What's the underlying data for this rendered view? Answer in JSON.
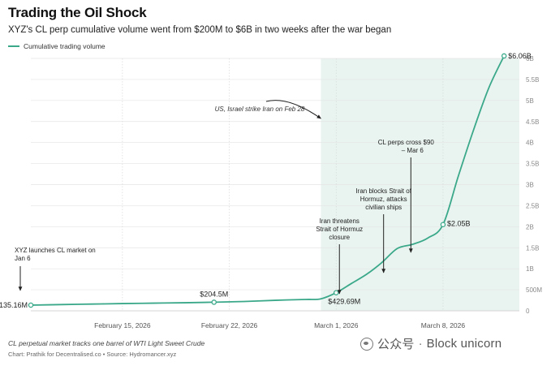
{
  "title": "Trading the Oil Shock",
  "subtitle": "XYZ's CL perp cumulative volume went from $200M to $6B in two weeks after the war began",
  "legend": {
    "label": "Cumulative trading volume"
  },
  "colors": {
    "line": "#3aa889",
    "shade": "#e9f4f0",
    "grid": "#e4e4e4",
    "text": "#333333"
  },
  "footnote": "CL perpetual market tracks one barrel of WTI Light Sweet Crude",
  "credit": "Chart: Prathik for Decentralised.co • Source: Hydromancer.xyz",
  "watermark": {
    "wechat": "公众号",
    "separator": "·",
    "name": "Block unicorn"
  },
  "chart_data": {
    "type": "line",
    "x_unit": "date",
    "y_unit": "USD",
    "x": [
      "2026-02-09",
      "2026-02-11",
      "2026-02-13",
      "2026-02-15",
      "2026-02-17",
      "2026-02-19",
      "2026-02-21",
      "2026-02-23",
      "2026-02-25",
      "2026-02-27",
      "2026-02-28",
      "2026-03-01",
      "2026-03-02",
      "2026-03-03",
      "2026-03-04",
      "2026-03-05",
      "2026-03-06",
      "2026-03-07",
      "2026-03-08",
      "2026-03-09",
      "2026-03-10",
      "2026-03-11",
      "2026-03-12"
    ],
    "series": [
      {
        "name": "Cumulative trading volume",
        "values": [
          135.16,
          148,
          160,
          172,
          182,
          192,
          204.5,
          222,
          250,
          270,
          285,
          429.69,
          650,
          870,
          1150,
          1480,
          1580,
          1730,
          2050,
          3200,
          4300,
          5300,
          6060
        ]
      }
    ],
    "xlim": [
      "2026-02-09",
      "2026-03-13"
    ],
    "ylim": [
      0,
      6000
    ],
    "y_ticks": [
      0,
      500,
      1000,
      1500,
      2000,
      2500,
      3000,
      3500,
      4000,
      4500,
      5000,
      5500,
      6000
    ],
    "y_tick_labels": [
      "0",
      "500M",
      "1B",
      "1.5B",
      "2B",
      "2.5B",
      "3B",
      "3.5B",
      "4B",
      "4.5B",
      "5B",
      "5.5B",
      "6B"
    ],
    "x_ticks": [
      "2026-02-15",
      "2026-02-22",
      "2026-03-01",
      "2026-03-08"
    ],
    "x_tick_labels": [
      "February 15, 2026",
      "February 22, 2026",
      "March 1, 2026",
      "March 8, 2026"
    ],
    "shaded_region": {
      "from": "2026-02-28",
      "to": "2026-03-13"
    },
    "grid": true,
    "legend_position": "top-left",
    "data_labels": [
      {
        "x": "2026-02-09",
        "y": 135.16,
        "text": "$135.16M"
      },
      {
        "x": "2026-02-21",
        "y": 204.5,
        "text": "$204.5M"
      },
      {
        "x": "2026-03-01",
        "y": 429.69,
        "text": "$429.69M"
      },
      {
        "x": "2026-03-08",
        "y": 2050,
        "text": "$2.05B"
      },
      {
        "x": "2026-03-12",
        "y": 6060,
        "text": "$6.06B"
      }
    ],
    "annotations": [
      {
        "lines": [
          "XYZ launches CL market on",
          "Jan 6"
        ],
        "x": "2026-02-09"
      },
      {
        "lines": [
          "US, Israel strike Iran on Feb 28"
        ],
        "x": "2026-02-28",
        "style": "italic"
      },
      {
        "lines": [
          "Iran threatens",
          "Strait of Hormuz",
          "closure"
        ],
        "x": "2026-03-01"
      },
      {
        "lines": [
          "Iran blocks Strait of",
          "Hormuz, attacks",
          "civilian ships"
        ],
        "x": "2026-03-04"
      },
      {
        "lines": [
          "CL perps cross $90",
          "– Mar 6"
        ],
        "x": "2026-03-06"
      }
    ]
  }
}
